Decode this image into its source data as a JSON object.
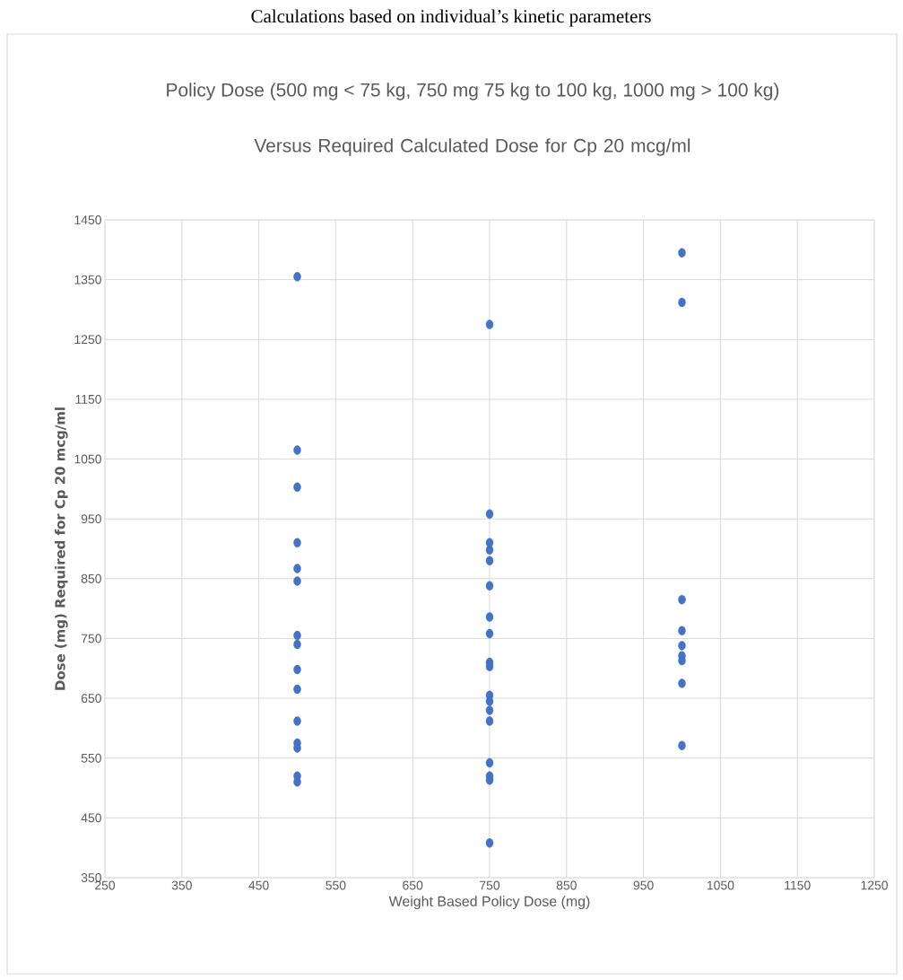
{
  "chart_data": {
    "type": "scatter",
    "title": "Policy Dose (500 mg < 75 kg, 750 mg 75 kg to 100 kg, 1000 mg > 100 kg)",
    "subtitle": "Versus Required Calculated Dose for Cp 20 mcg/ml",
    "annotations": [
      "Calculations based on individual’s kinetic parameters"
    ],
    "xlabel": "Weight Based Policy Dose (mg)",
    "ylabel": "Dose (mg) Required for Cp 20 mcg/ml",
    "xlim": [
      250,
      1250
    ],
    "xticks": [
      250,
      350,
      450,
      550,
      650,
      750,
      850,
      950,
      1050,
      1150,
      1250
    ],
    "ylim": [
      350,
      1450
    ],
    "yticks": [
      350,
      450,
      550,
      650,
      750,
      850,
      950,
      1050,
      1150,
      1250,
      1350,
      1450
    ],
    "grid": true,
    "marker": "circle",
    "series": [
      {
        "color": "#4472c4",
        "x": [
          500,
          500,
          500,
          500,
          500,
          500,
          500,
          500,
          500,
          500,
          500,
          500,
          500,
          500,
          500,
          750,
          750,
          750,
          750,
          750,
          750,
          750,
          750,
          750,
          750,
          750,
          750,
          750,
          750,
          750,
          750,
          750,
          750,
          1000,
          1000,
          1000,
          1000,
          1000,
          1000,
          1000,
          1000,
          1000
        ],
        "values": [
          1355,
          1065,
          1003,
          910,
          867,
          846,
          755,
          740,
          698,
          665,
          612,
          575,
          567,
          520,
          510,
          1275,
          958,
          910,
          898,
          880,
          838,
          786,
          758,
          710,
          703,
          655,
          645,
          630,
          612,
          542,
          520,
          513,
          408,
          1395,
          1312,
          815,
          763,
          738,
          721,
          713,
          675,
          571
        ]
      }
    ]
  }
}
